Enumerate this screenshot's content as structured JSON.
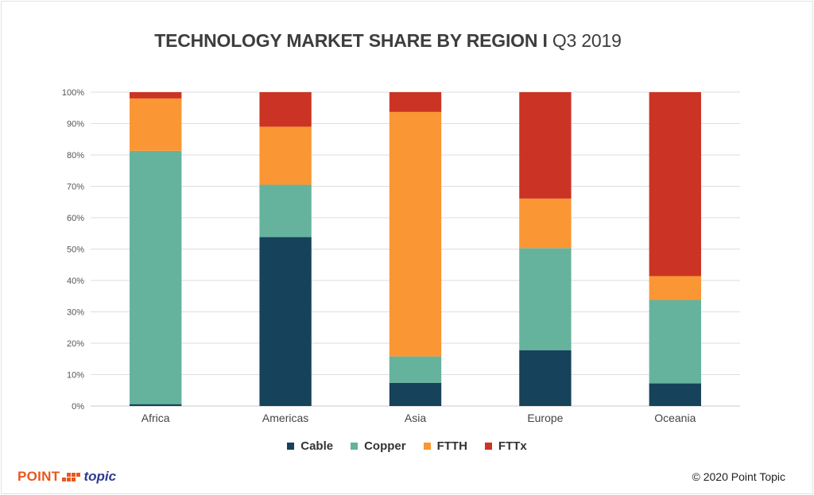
{
  "title": {
    "bold": "TECHNOLOGY MARKET SHARE BY REGION I",
    "light": "Q3 2019"
  },
  "chart_data": {
    "type": "bar",
    "stacked": true,
    "title": "TECHNOLOGY MARKET SHARE BY REGION I Q3 2019",
    "categories": [
      "Africa",
      "Americas",
      "Asia",
      "Europe",
      "Oceania"
    ],
    "series": [
      {
        "name": "Cable",
        "color": "#16425B",
        "values": [
          0.6,
          53.8,
          7.4,
          17.8,
          7.2
        ]
      },
      {
        "name": "Copper",
        "color": "#65B39D",
        "values": [
          80.7,
          16.7,
          8.4,
          32.5,
          26.6
        ]
      },
      {
        "name": "FTTH",
        "color": "#FB9634",
        "values": [
          16.7,
          18.5,
          77.9,
          15.8,
          7.6
        ]
      },
      {
        "name": "FTTx",
        "color": "#CB3424",
        "values": [
          2.0,
          11.0,
          6.3,
          33.9,
          58.6
        ]
      }
    ],
    "yticks": [
      "0%",
      "10%",
      "20%",
      "30%",
      "40%",
      "50%",
      "60%",
      "70%",
      "80%",
      "90%",
      "100%"
    ],
    "ylim": [
      0,
      100
    ],
    "xlabel": "",
    "ylabel": "",
    "grid": true,
    "legend_position": "bottom"
  },
  "legend": [
    {
      "label": "Cable",
      "color": "#16425B"
    },
    {
      "label": "Copper",
      "color": "#65B39D"
    },
    {
      "label": "FTTH",
      "color": "#FB9634"
    },
    {
      "label": "FTTx",
      "color": "#CB3424"
    }
  ],
  "footer": {
    "logo_point": "POINT",
    "logo_topic": "topic",
    "copyright": "© 2020 Point Topic"
  }
}
